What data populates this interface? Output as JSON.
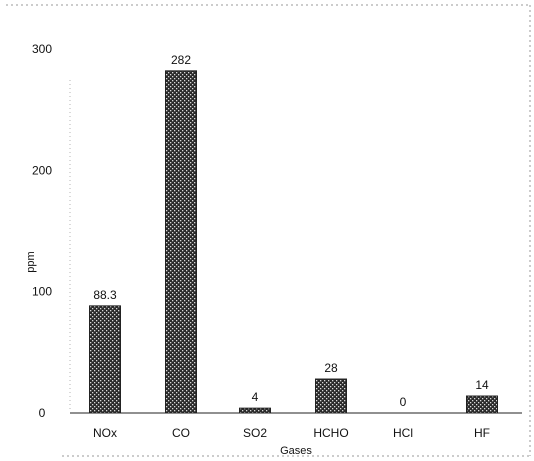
{
  "chart_data": {
    "type": "bar",
    "title": "",
    "xlabel": "Gases",
    "ylabel": "ppm",
    "categories": [
      "NOx",
      "CO",
      "SO2",
      "HCHO",
      "HCl",
      "HF"
    ],
    "values": [
      88.3,
      282,
      4,
      28,
      0,
      14
    ],
    "data_labels": [
      "88.3",
      "282",
      "4",
      "28",
      "0",
      "14"
    ],
    "ylim": [
      0,
      300
    ],
    "yticks": [
      0,
      100,
      200,
      300
    ],
    "grid": false,
    "legend": "none",
    "colors": {
      "bar_fill": "#2a2a2a",
      "bar_pattern_light": "#d8d8d8",
      "axis": "#222222",
      "frame": "#9a9a9a"
    }
  }
}
